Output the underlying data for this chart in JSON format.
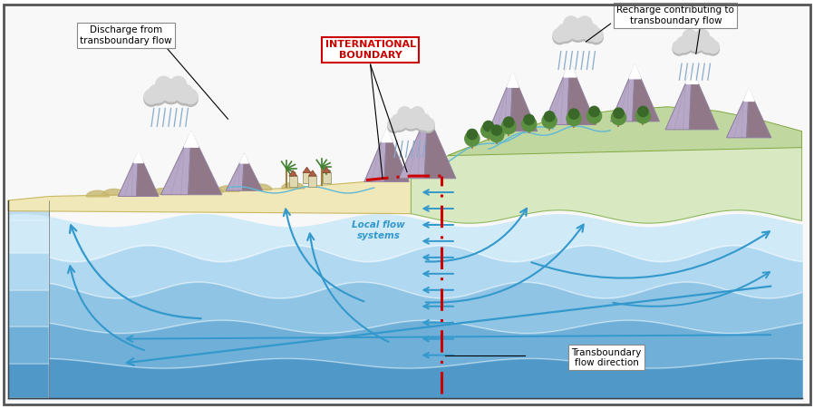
{
  "figure_width": 8.98,
  "figure_height": 4.51,
  "dpi": 100,
  "border_color": "#555555",
  "background_color": "#ffffff",
  "labels": {
    "international_boundary": "INTERNATIONAL\nBOUNDARY",
    "discharge": "Discharge from\ntransboundary flow",
    "local_flow": "Local flow\nsystems",
    "recharge": "Recharge contributing to\ntransboundary flow",
    "transboundary_dir": "Transboundary\nflow direction"
  },
  "colors": {
    "sky": "#ffffff",
    "water_layer1": "#d0eaf8",
    "water_layer2": "#b0d8f0",
    "water_layer3": "#90c4e4",
    "water_layer4": "#70b0d8",
    "water_layer5": "#5098c8",
    "land_left": "#f0e8b8",
    "land_right_low": "#d8e8c0",
    "land_right_high": "#c0d8a0",
    "front_face": "#c0ddf0",
    "bottom_face": "#a0c8e8",
    "mountain_fill": "#b8a8c8",
    "mountain_outline": "#9080a0",
    "mountain_dark": "#907888",
    "snow": "#ffffff",
    "tree_green": "#5a9040",
    "tree_dark": "#3a6828",
    "boundary_line": "#cc0000",
    "arrow_color": "#3399cc",
    "rain_color": "#88aacc",
    "cloud_color": "#d8d8d8",
    "cloud_shadow": "#b8b8b8",
    "dune_color": "#c8b870",
    "building_wall": "#e0d8b0",
    "building_roof": "#b06040",
    "palm_trunk": "#a08040",
    "palm_green": "#408030"
  }
}
